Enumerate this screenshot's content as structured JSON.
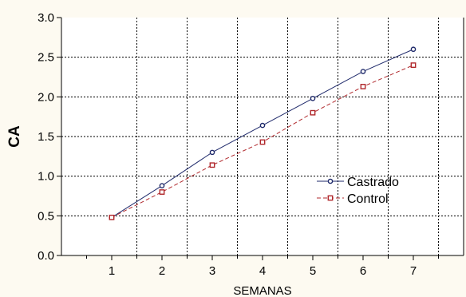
{
  "chart_data": {
    "type": "line",
    "xlabel": "SEMANAS",
    "ylabel": "CA",
    "x": [
      1,
      2,
      3,
      4,
      5,
      6,
      7
    ],
    "xlim": [
      0,
      8
    ],
    "ylim": [
      0,
      3
    ],
    "x_ticks": [
      1,
      2,
      3,
      4,
      5,
      6,
      7
    ],
    "y_ticks": [
      "0.0",
      "0.5",
      "1.0",
      "1.5",
      "2.0",
      "2.5",
      "3.0"
    ],
    "grid": true,
    "legend_position": "right",
    "series": [
      {
        "name": "Castrado",
        "values": [
          0.48,
          0.88,
          1.3,
          1.64,
          1.98,
          2.32,
          2.6
        ],
        "color": "#1f2a6b",
        "line_style": "solid",
        "marker": "circle"
      },
      {
        "name": "Control",
        "values": [
          0.48,
          0.8,
          1.14,
          1.43,
          1.8,
          2.13,
          2.4
        ],
        "color": "#b0282c",
        "line_style": "dashed",
        "marker": "square"
      }
    ]
  }
}
